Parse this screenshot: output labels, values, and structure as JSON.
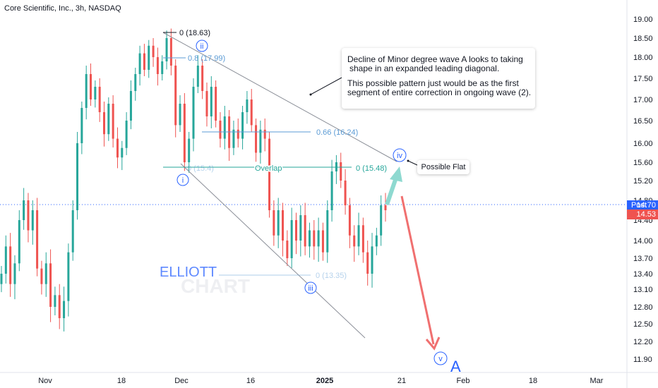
{
  "header": {
    "title": "Core Scientific, Inc., 3h, NASDAQ"
  },
  "price_axis": {
    "ticks": [
      "19.00",
      "18.50",
      "18.00",
      "17.50",
      "17.00",
      "16.50",
      "16.00",
      "15.60",
      "15.20",
      "14.80",
      "14.40",
      "14.00",
      "13.70",
      "13.40",
      "13.10",
      "12.80",
      "12.50",
      "12.20",
      "11.90"
    ],
    "post_label": "Post",
    "post_value": "14.70",
    "last_value": "14.53"
  },
  "time_axis": {
    "ticks": [
      "Nov",
      "18",
      "Dec",
      "16",
      "2025",
      "21",
      "Feb",
      "18",
      "Mar"
    ]
  },
  "colors": {
    "up": "#26a69a",
    "down": "#ef5350",
    "fib": "#5b9bd5",
    "wave": "#2962ff",
    "arrow_up": "#8ed9d0",
    "arrow_down": "#f07070"
  },
  "annotations": {
    "fib_0": "0 (18.63)",
    "fib_08": "0.8 (17.99)",
    "fib_066": "0.66 (16.24)",
    "fib_overlap_0": "0 (15.48)",
    "fib_overlap_left": "0 (15.4)",
    "fib_1335": "0 (13.35)",
    "overlap": "Overlap",
    "wave_i": "i",
    "wave_ii": "ii",
    "wave_iii": "iii",
    "wave_iv": "iv",
    "wave_v": "v",
    "wave_A": "A",
    "watermark_1": "ELLIOTT",
    "watermark_2": "CHART",
    "callout_flat": "Possible Flat",
    "callout_main_1": "Decline of Minor degree wave A looks to taking",
    "callout_main_2": "shape in an expanded leading diagonal.",
    "callout_main_3": "This possible pattern just would be as the first",
    "callout_main_4": "segment of entire correction in ongoing wave (2)."
  },
  "chart_data": {
    "type": "candlestick",
    "title": "Core Scientific, Inc., 3h, NASDAQ",
    "ylim": [
      11.75,
      19.15
    ],
    "y_scale": "linear",
    "grid": false,
    "closes": [
      13.4,
      13.9,
      13.2,
      13.6,
      14.4,
      14.8,
      14.2,
      14.6,
      13.5,
      13.2,
      13.6,
      12.8,
      13.0,
      12.6,
      12.9,
      13.8,
      14.6,
      16.0,
      16.8,
      17.6,
      17.0,
      17.3,
      16.7,
      16.2,
      16.9,
      16.1,
      15.7,
      15.9,
      16.5,
      17.2,
      17.6,
      18.1,
      17.7,
      18.3,
      18.0,
      17.6,
      17.9,
      18.5,
      17.8,
      16.4,
      16.9,
      15.6,
      16.1,
      17.3,
      17.8,
      17.2,
      16.6,
      17.3,
      16.5,
      16.1,
      16.6,
      15.9,
      16.3,
      16.1,
      16.7,
      17.0,
      16.4,
      15.8,
      16.3,
      16.1,
      14.6,
      14.1,
      14.6,
      14.0,
      13.7,
      14.4,
      14.0,
      14.5,
      13.9,
      14.2,
      13.9,
      14.2,
      13.8,
      14.6,
      15.4,
      15.6,
      15.2,
      14.7,
      14.1,
      13.9,
      14.3,
      13.8,
      13.4,
      13.9,
      14.1,
      14.7,
      14.6
    ],
    "annotation_levels": [
      18.63,
      17.99,
      16.24,
      15.48,
      13.35
    ],
    "labels": {
      "fib": [
        "0 (18.63)",
        "0.8 (17.99)",
        "0.66 (16.24)",
        "0 (15.48)",
        "0 (13.35)"
      ],
      "waves": [
        "i",
        "ii",
        "iii",
        "iv",
        "v",
        "A"
      ]
    },
    "x_ticks": [
      "Nov",
      "18",
      "Dec",
      "16",
      "2025",
      "21",
      "Feb",
      "18",
      "Mar"
    ],
    "y_ticks": [
      19.0,
      18.5,
      18.0,
      17.5,
      17.0,
      16.5,
      16.0,
      15.6,
      15.2,
      14.8,
      14.4,
      14.0,
      13.7,
      13.4,
      13.1,
      12.8,
      12.5,
      12.2,
      11.9
    ],
    "last_price": 14.53,
    "post_price": 14.7
  }
}
